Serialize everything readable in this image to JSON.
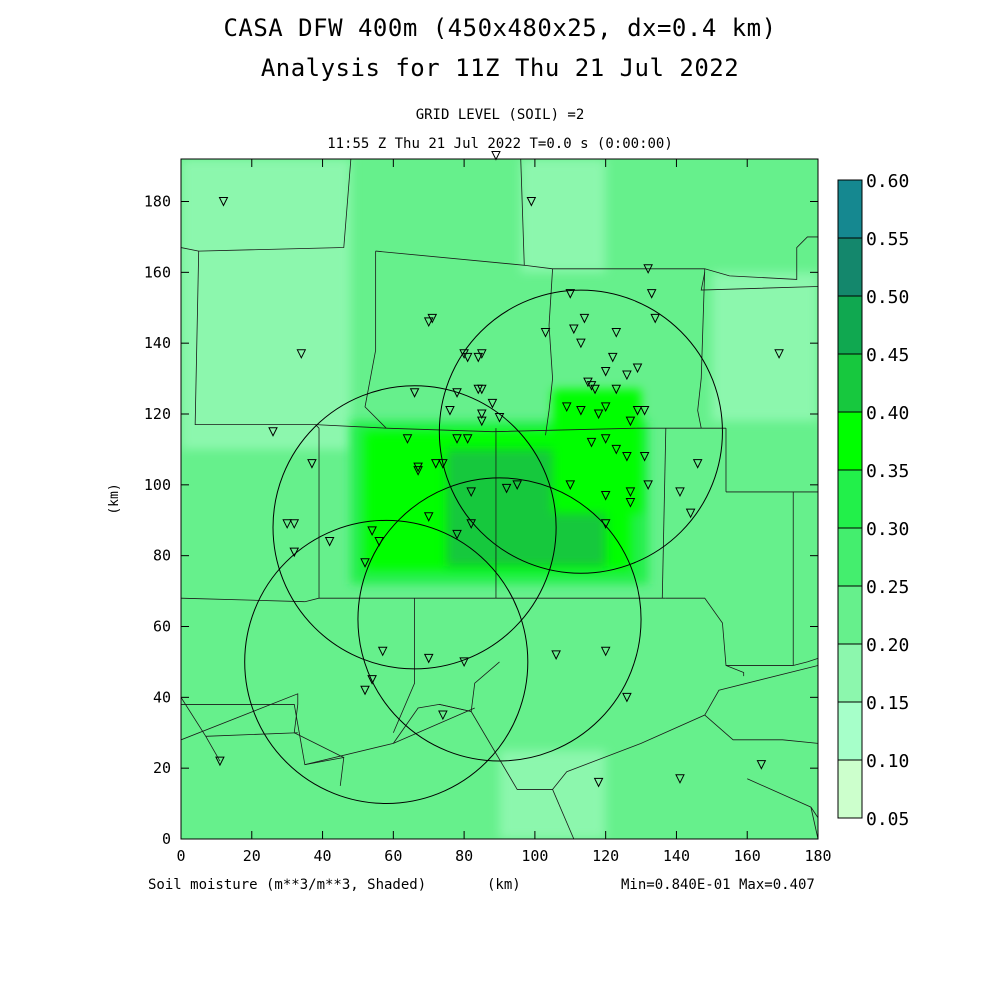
{
  "title_line1": "CASA DFW 400m (450x480x25, dx=0.4 km)",
  "title_line2": "Analysis for 11Z Thu 21 Jul 2022",
  "subtitle_level": "GRID LEVEL (SOIL) =2",
  "subtitle_time": "11:55 Z Thu 21 Jul 2022   T=0.0 s (0:00:00)",
  "footer": {
    "variable_label": "Soil moisture (m**3/m**3, Shaded)",
    "x_unit_label": "(km)",
    "minmax_label": "Min=0.840E-01 Max=0.407"
  },
  "colors": {
    "background_field": "#66f08c",
    "dark_core": "#17c83e",
    "bright_ring": "#22f04a",
    "lighter": "#8cf7ad",
    "lightest": "#a8fbc6"
  },
  "chart_data": {
    "type": "heatmap",
    "xlabel": "(km)",
    "ylabel": "(km)",
    "xlim": [
      0,
      180
    ],
    "ylim": [
      0,
      192
    ],
    "x_ticks": [
      0,
      20,
      40,
      60,
      80,
      100,
      120,
      140,
      160,
      180
    ],
    "y_ticks": [
      0,
      20,
      40,
      60,
      80,
      100,
      120,
      140,
      160,
      180
    ],
    "colorbar": {
      "levels": [
        0.05,
        0.1,
        0.15,
        0.2,
        0.25,
        0.3,
        0.35,
        0.4,
        0.45,
        0.5,
        0.55,
        0.6
      ],
      "level_labels": [
        "0.05",
        "0.10",
        "0.15",
        "0.20",
        "0.25",
        "0.30",
        "0.35",
        "0.40",
        "0.45",
        "0.50",
        "0.55",
        "0.60"
      ],
      "colors": [
        "#ccffcc",
        "#a6ffc9",
        "#8cf7ad",
        "#66f08c",
        "#44ee6e",
        "#22f04a",
        "#00ff00",
        "#17c83e",
        "#10a850",
        "#14876c",
        "#158890",
        "#1060f0"
      ]
    },
    "field_regions": [
      {
        "x": [
          0,
          180
        ],
        "y": [
          0,
          192
        ],
        "value": 0.22
      },
      {
        "x": [
          0,
          48
        ],
        "y": [
          110,
          192
        ],
        "value": 0.16
      },
      {
        "x": [
          96,
          120
        ],
        "y": [
          160,
          192
        ],
        "value": 0.17
      },
      {
        "x": [
          150,
          180
        ],
        "y": [
          118,
          160
        ],
        "value": 0.17
      },
      {
        "x": [
          90,
          120
        ],
        "y": [
          0,
          25
        ],
        "value": 0.17
      },
      {
        "x": [
          48,
          132
        ],
        "y": [
          72,
          118
        ],
        "value": 0.32
      },
      {
        "x": [
          52,
          127
        ],
        "y": [
          76,
          115
        ],
        "value": 0.37
      },
      {
        "x": [
          56,
          123
        ],
        "y": [
          80,
          112
        ],
        "value": 0.38
      },
      {
        "x": [
          75,
          120
        ],
        "y": [
          77,
          110
        ],
        "value": 0.41
      },
      {
        "x": [
          105,
          130
        ],
        "y": [
          92,
          127
        ],
        "value": 0.36
      }
    ],
    "radar_rings": [
      {
        "center": [
          66,
          88
        ],
        "radius_km": 40
      },
      {
        "center": [
          90,
          62
        ],
        "radius_km": 40
      },
      {
        "center": [
          58,
          50
        ],
        "radius_km": 40
      },
      {
        "center": [
          113,
          115
        ],
        "radius_km": 40
      }
    ],
    "stations": [
      [
        12,
        180
      ],
      [
        89,
        193
      ],
      [
        99,
        180
      ],
      [
        132,
        161
      ],
      [
        133,
        154
      ],
      [
        110,
        154
      ],
      [
        134,
        147
      ],
      [
        71,
        147
      ],
      [
        70,
        146
      ],
      [
        114,
        147
      ],
      [
        123,
        143
      ],
      [
        103,
        143
      ],
      [
        111,
        144
      ],
      [
        34,
        137
      ],
      [
        80,
        137
      ],
      [
        81,
        136
      ],
      [
        85,
        137
      ],
      [
        84,
        136
      ],
      [
        113,
        140
      ],
      [
        122,
        136
      ],
      [
        169,
        137
      ],
      [
        120,
        132
      ],
      [
        126,
        131
      ],
      [
        129,
        133
      ],
      [
        115,
        129
      ],
      [
        116,
        128
      ],
      [
        117,
        127
      ],
      [
        66,
        126
      ],
      [
        78,
        126
      ],
      [
        84,
        127
      ],
      [
        85,
        127
      ],
      [
        123,
        127
      ],
      [
        76,
        121
      ],
      [
        88,
        123
      ],
      [
        109,
        122
      ],
      [
        113,
        121
      ],
      [
        120,
        122
      ],
      [
        131,
        121
      ],
      [
        118,
        120
      ],
      [
        127,
        118
      ],
      [
        85,
        120
      ],
      [
        85,
        118
      ],
      [
        90,
        119
      ],
      [
        129,
        121
      ],
      [
        26,
        115
      ],
      [
        64,
        113
      ],
      [
        78,
        113
      ],
      [
        81,
        113
      ],
      [
        120,
        113
      ],
      [
        116,
        112
      ],
      [
        123,
        110
      ],
      [
        37,
        106
      ],
      [
        72,
        106
      ],
      [
        74,
        106
      ],
      [
        67,
        105
      ],
      [
        67,
        104
      ],
      [
        126,
        108
      ],
      [
        131,
        108
      ],
      [
        146,
        106
      ],
      [
        110,
        100
      ],
      [
        95,
        100
      ],
      [
        92,
        99
      ],
      [
        132,
        100
      ],
      [
        141,
        98
      ],
      [
        127,
        98
      ],
      [
        120,
        97
      ],
      [
        82,
        98
      ],
      [
        127,
        95
      ],
      [
        144,
        92
      ],
      [
        70,
        91
      ],
      [
        30,
        89
      ],
      [
        32,
        89
      ],
      [
        82,
        89
      ],
      [
        120,
        89
      ],
      [
        78,
        86
      ],
      [
        54,
        87
      ],
      [
        56,
        84
      ],
      [
        42,
        84
      ],
      [
        32,
        81
      ],
      [
        52,
        78
      ],
      [
        57,
        53
      ],
      [
        70,
        51
      ],
      [
        80,
        50
      ],
      [
        106,
        52
      ],
      [
        120,
        53
      ],
      [
        54,
        45
      ],
      [
        52,
        42
      ],
      [
        126,
        40
      ],
      [
        74,
        35
      ],
      [
        11,
        22
      ],
      [
        141,
        17
      ],
      [
        118,
        16
      ],
      [
        164,
        21
      ]
    ],
    "county_boundaries": [
      [
        [
          48,
          192
        ],
        [
          46,
          167
        ],
        [
          5,
          166
        ],
        [
          4,
          117
        ],
        [
          38,
          117
        ],
        [
          39,
          116
        ],
        [
          39,
          89
        ],
        [
          39,
          68
        ],
        [
          35,
          67
        ]
      ],
      [
        [
          0,
          167
        ],
        [
          5,
          166
        ]
      ],
      [
        [
          38,
          117
        ],
        [
          58,
          116
        ],
        [
          88,
          115
        ],
        [
          129,
          116
        ],
        [
          141,
          116
        ],
        [
          154,
          116
        ]
      ],
      [
        [
          55,
          166
        ],
        [
          55,
          138
        ],
        [
          52,
          122
        ],
        [
          58,
          116
        ]
      ],
      [
        [
          96,
          192
        ],
        [
          97,
          162
        ],
        [
          55,
          166
        ]
      ],
      [
        [
          97,
          162
        ],
        [
          105,
          161
        ],
        [
          122,
          161
        ],
        [
          148,
          161
        ],
        [
          155,
          159
        ],
        [
          174,
          158
        ],
        [
          174,
          167
        ],
        [
          177,
          170
        ],
        [
          180,
          170
        ]
      ],
      [
        [
          105,
          161
        ],
        [
          104,
          145
        ],
        [
          105,
          130
        ],
        [
          104,
          121
        ],
        [
          103,
          114
        ]
      ],
      [
        [
          148,
          161
        ],
        [
          147,
          130
        ],
        [
          146,
          121
        ],
        [
          147,
          116
        ]
      ],
      [
        [
          148,
          160
        ],
        [
          147,
          155
        ],
        [
          180,
          156
        ]
      ],
      [
        [
          39,
          68
        ],
        [
          66,
          68
        ],
        [
          89,
          68
        ]
      ],
      [
        [
          66,
          68
        ],
        [
          66,
          44
        ],
        [
          60,
          30
        ]
      ],
      [
        [
          89,
          68
        ],
        [
          89,
          102
        ],
        [
          89,
          116
        ]
      ],
      [
        [
          89,
          68
        ],
        [
          128,
          68
        ],
        [
          137,
          68
        ]
      ],
      [
        [
          137,
          116
        ],
        [
          136,
          68
        ]
      ],
      [
        [
          137,
          68
        ],
        [
          148,
          68
        ],
        [
          153,
          61
        ],
        [
          154,
          49
        ],
        [
          159,
          47
        ],
        [
          159,
          46
        ]
      ],
      [
        [
          154,
          49
        ],
        [
          173,
          49
        ],
        [
          177,
          50
        ],
        [
          180,
          51
        ]
      ],
      [
        [
          173,
          49
        ],
        [
          173,
          98
        ],
        [
          180,
          98
        ]
      ],
      [
        [
          154,
          98
        ],
        [
          173,
          98
        ]
      ],
      [
        [
          154,
          116
        ],
        [
          154,
          98
        ]
      ],
      [
        [
          0,
          68
        ],
        [
          35,
          67
        ]
      ],
      [
        [
          0,
          0
        ],
        [
          0,
          28
        ],
        [
          33,
          41
        ],
        [
          33,
          38
        ],
        [
          32,
          30
        ],
        [
          46,
          23
        ]
      ],
      [
        [
          0,
          40
        ],
        [
          7,
          29
        ],
        [
          11,
          22
        ]
      ],
      [
        [
          7,
          29
        ],
        [
          33,
          30
        ]
      ],
      [
        [
          0,
          38
        ],
        [
          32,
          38
        ],
        [
          35,
          21
        ],
        [
          46,
          23
        ],
        [
          45,
          15
        ]
      ],
      [
        [
          35,
          21
        ],
        [
          60,
          27
        ],
        [
          83,
          37
        ]
      ],
      [
        [
          60,
          27
        ],
        [
          67,
          37
        ],
        [
          73,
          38
        ],
        [
          82,
          36
        ]
      ],
      [
        [
          82,
          36
        ],
        [
          83,
          44
        ],
        [
          90,
          50
        ]
      ],
      [
        [
          73,
          38
        ],
        [
          82,
          36
        ]
      ],
      [
        [
          82,
          36
        ],
        [
          95,
          14
        ],
        [
          105,
          14
        ]
      ],
      [
        [
          105,
          14
        ],
        [
          111,
          0
        ]
      ],
      [
        [
          105,
          14
        ],
        [
          109,
          19
        ],
        [
          130,
          27
        ],
        [
          148,
          35
        ],
        [
          152,
          42
        ],
        [
          180,
          49
        ]
      ],
      [
        [
          148,
          35
        ],
        [
          156,
          28
        ],
        [
          170,
          28
        ],
        [
          180,
          27
        ]
      ],
      [
        [
          160,
          17
        ],
        [
          178,
          9
        ],
        [
          180,
          6
        ]
      ],
      [
        [
          178,
          9
        ],
        [
          180,
          0
        ]
      ]
    ],
    "max_value": 0.407,
    "min_value": 0.084
  }
}
